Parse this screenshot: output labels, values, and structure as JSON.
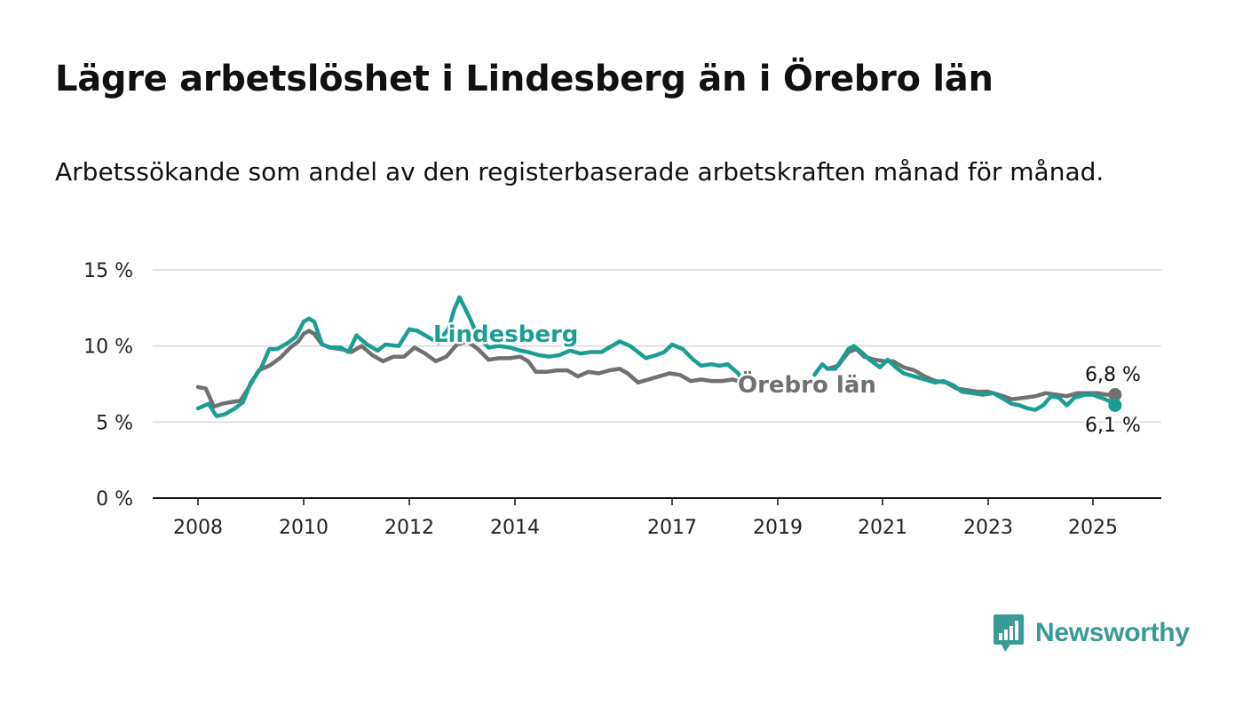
{
  "title": "Lägre arbetslöshet i Lindesberg än i Örebro län",
  "subtitle": "Arbetssökande som andel av den registerbaserade arbetskraften månad för månad.",
  "brand": "Newsworthy",
  "colors": {
    "lindesberg": "#1a9e94",
    "orebro": "#707070",
    "grid": "#d9d9d9",
    "axis": "#111111",
    "brand": "#3a9a96"
  },
  "chart_data": {
    "type": "line",
    "x_ticks": [
      2008,
      2010,
      2012,
      2014,
      2017,
      2019,
      2021,
      2023,
      2025
    ],
    "y_ticks": [
      0,
      5,
      10,
      15
    ],
    "y_tick_labels": [
      "0 %",
      "5 %",
      "10 %",
      "15 %"
    ],
    "ylim": [
      0,
      15
    ],
    "xlim": [
      2007.15,
      2026.3
    ],
    "grid": true,
    "note_time_axis": "not uniform: 2014 to 2017 is compressed",
    "series": [
      {
        "name": "Lindesberg",
        "end_label": "6,1 %",
        "points": [
          [
            2008.0,
            5.9
          ],
          [
            2008.2,
            6.2
          ],
          [
            2008.35,
            5.4
          ],
          [
            2008.5,
            5.5
          ],
          [
            2008.7,
            5.9
          ],
          [
            2008.85,
            6.3
          ],
          [
            2009.0,
            7.6
          ],
          [
            2009.2,
            8.6
          ],
          [
            2009.35,
            9.8
          ],
          [
            2009.5,
            9.8
          ],
          [
            2009.7,
            10.2
          ],
          [
            2009.85,
            10.6
          ],
          [
            2010.0,
            11.6
          ],
          [
            2010.1,
            11.8
          ],
          [
            2010.2,
            11.6
          ],
          [
            2010.35,
            10.1
          ],
          [
            2010.5,
            9.9
          ],
          [
            2010.7,
            9.9
          ],
          [
            2010.85,
            9.6
          ],
          [
            2011.0,
            10.7
          ],
          [
            2011.2,
            10.1
          ],
          [
            2011.4,
            9.7
          ],
          [
            2011.55,
            10.1
          ],
          [
            2011.8,
            10.0
          ],
          [
            2012.0,
            11.1
          ],
          [
            2012.15,
            11.0
          ],
          [
            2012.4,
            10.5
          ],
          [
            2012.55,
            10.2
          ],
          [
            2012.75,
            11.2
          ],
          [
            2012.85,
            12.4
          ],
          [
            2012.95,
            13.2
          ],
          [
            2013.15,
            11.8
          ],
          [
            2013.3,
            10.6
          ],
          [
            2013.5,
            9.9
          ],
          [
            2013.7,
            10.0
          ],
          [
            2013.9,
            9.9
          ],
          [
            2014.1,
            9.7
          ],
          [
            2014.25,
            9.6
          ],
          [
            2014.45,
            9.4
          ],
          [
            2014.65,
            9.3
          ],
          [
            2014.85,
            9.4
          ],
          [
            2015.05,
            9.7
          ],
          [
            2015.25,
            9.5
          ],
          [
            2015.45,
            9.6
          ],
          [
            2015.65,
            9.6
          ],
          [
            2015.85,
            10.0
          ],
          [
            2016.0,
            10.3
          ],
          [
            2016.2,
            10.0
          ],
          [
            2016.35,
            9.6
          ],
          [
            2016.5,
            9.2
          ],
          [
            2016.7,
            9.4
          ],
          [
            2016.85,
            9.6
          ],
          [
            2017.0,
            10.1
          ],
          [
            2017.2,
            9.8
          ],
          [
            2017.4,
            9.1
          ],
          [
            2017.55,
            8.7
          ],
          [
            2017.75,
            8.8
          ],
          [
            2017.9,
            8.7
          ],
          [
            2018.05,
            8.8
          ],
          [
            2018.25,
            8.2
          ],
          [
            2018.35,
            7.6
          ],
          null,
          [
            2019.7,
            8.1
          ],
          [
            2019.85,
            8.8
          ],
          [
            2019.95,
            8.5
          ],
          [
            2020.1,
            8.5
          ],
          [
            2020.2,
            9.0
          ],
          [
            2020.35,
            9.8
          ],
          [
            2020.45,
            10.0
          ],
          [
            2020.6,
            9.6
          ],
          [
            2020.75,
            9.1
          ],
          [
            2020.95,
            8.6
          ],
          [
            2021.1,
            9.1
          ],
          [
            2021.25,
            8.6
          ],
          [
            2021.4,
            8.2
          ],
          [
            2021.6,
            8.0
          ],
          [
            2021.8,
            7.8
          ],
          [
            2022.0,
            7.6
          ],
          [
            2022.15,
            7.7
          ],
          [
            2022.35,
            7.4
          ],
          [
            2022.5,
            7.0
          ],
          [
            2022.7,
            6.9
          ],
          [
            2022.9,
            6.8
          ],
          [
            2023.1,
            6.9
          ],
          [
            2023.3,
            6.5
          ],
          [
            2023.45,
            6.2
          ],
          [
            2023.6,
            6.1
          ],
          [
            2023.75,
            5.9
          ],
          [
            2023.9,
            5.8
          ],
          [
            2024.05,
            6.1
          ],
          [
            2024.2,
            6.7
          ],
          [
            2024.35,
            6.6
          ],
          [
            2024.5,
            6.1
          ],
          [
            2024.65,
            6.6
          ],
          [
            2024.85,
            6.8
          ],
          [
            2025.0,
            6.8
          ],
          [
            2025.15,
            6.6
          ],
          [
            2025.3,
            6.4
          ],
          [
            2025.42,
            6.1
          ]
        ]
      },
      {
        "name": "Örebro län",
        "end_label": "6,8 %",
        "points": [
          [
            2008.0,
            7.3
          ],
          [
            2008.15,
            7.2
          ],
          [
            2008.3,
            6.0
          ],
          [
            2008.45,
            6.2
          ],
          [
            2008.6,
            6.3
          ],
          [
            2008.8,
            6.4
          ],
          [
            2008.95,
            7.2
          ],
          [
            2009.15,
            8.4
          ],
          [
            2009.35,
            8.7
          ],
          [
            2009.55,
            9.2
          ],
          [
            2009.75,
            9.9
          ],
          [
            2009.9,
            10.3
          ],
          [
            2010.0,
            10.8
          ],
          [
            2010.1,
            11.0
          ],
          [
            2010.2,
            10.8
          ],
          [
            2010.35,
            10.1
          ],
          [
            2010.5,
            9.9
          ],
          [
            2010.7,
            9.8
          ],
          [
            2010.9,
            9.6
          ],
          [
            2011.1,
            10.0
          ],
          [
            2011.3,
            9.4
          ],
          [
            2011.5,
            9.0
          ],
          [
            2011.7,
            9.3
          ],
          [
            2011.9,
            9.3
          ],
          [
            2012.1,
            9.9
          ],
          [
            2012.3,
            9.5
          ],
          [
            2012.5,
            9.0
          ],
          [
            2012.7,
            9.3
          ],
          [
            2012.9,
            10.1
          ],
          [
            2013.1,
            10.3
          ],
          [
            2013.3,
            9.8
          ],
          [
            2013.5,
            9.1
          ],
          [
            2013.7,
            9.2
          ],
          [
            2013.9,
            9.2
          ],
          [
            2014.1,
            9.3
          ],
          [
            2014.25,
            9.0
          ],
          [
            2014.4,
            8.3
          ],
          [
            2014.6,
            8.3
          ],
          [
            2014.8,
            8.4
          ],
          [
            2015.0,
            8.4
          ],
          [
            2015.2,
            8.0
          ],
          [
            2015.4,
            8.3
          ],
          [
            2015.6,
            8.2
          ],
          [
            2015.8,
            8.4
          ],
          [
            2016.0,
            8.5
          ],
          [
            2016.15,
            8.2
          ],
          [
            2016.35,
            7.6
          ],
          [
            2016.55,
            7.8
          ],
          [
            2016.75,
            8.0
          ],
          [
            2016.95,
            8.2
          ],
          [
            2017.15,
            8.1
          ],
          [
            2017.35,
            7.7
          ],
          [
            2017.55,
            7.8
          ],
          [
            2017.75,
            7.7
          ],
          [
            2017.95,
            7.7
          ],
          [
            2018.15,
            7.8
          ],
          [
            2018.35,
            7.6
          ],
          null,
          [
            2019.95,
            8.5
          ],
          [
            2020.15,
            8.7
          ],
          [
            2020.35,
            9.6
          ],
          [
            2020.5,
            9.8
          ],
          [
            2020.65,
            9.3
          ],
          [
            2020.85,
            9.1
          ],
          [
            2021.05,
            9.0
          ],
          [
            2021.2,
            9.0
          ],
          [
            2021.4,
            8.6
          ],
          [
            2021.6,
            8.4
          ],
          [
            2021.8,
            8.0
          ],
          [
            2022.0,
            7.7
          ],
          [
            2022.2,
            7.6
          ],
          [
            2022.4,
            7.2
          ],
          [
            2022.6,
            7.1
          ],
          [
            2022.8,
            7.0
          ],
          [
            2023.0,
            7.0
          ],
          [
            2023.2,
            6.8
          ],
          [
            2023.45,
            6.5
          ],
          [
            2023.7,
            6.6
          ],
          [
            2023.9,
            6.7
          ],
          [
            2024.1,
            6.9
          ],
          [
            2024.3,
            6.8
          ],
          [
            2024.5,
            6.7
          ],
          [
            2024.7,
            6.9
          ],
          [
            2024.9,
            6.9
          ],
          [
            2025.1,
            6.9
          ],
          [
            2025.25,
            6.8
          ],
          [
            2025.42,
            6.8
          ]
        ]
      }
    ]
  }
}
